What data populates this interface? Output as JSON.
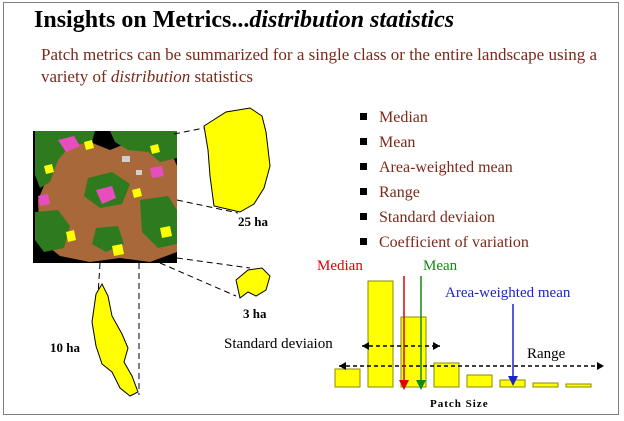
{
  "title": {
    "main": "Insights on Metrics",
    "ellipsis": "...",
    "italic": "distribution statistics"
  },
  "subtitle": {
    "before": "Patch metrics can be summarized for a single class or the entire landscape using a variety of ",
    "em": "distribution",
    "after": " statistics"
  },
  "bullets": [
    "Median",
    "Mean",
    "Area-weighted mean",
    "Range",
    "Standard deviaion",
    "Coefficient of variation"
  ],
  "patches": {
    "large": "25 ha",
    "small": "3 ha",
    "medium": "10 ha"
  },
  "histogram": {
    "median_label": "Median",
    "mean_label": "Mean",
    "awm_label": "Area-weighted mean",
    "sd_label": "Standard deviaion",
    "range_label": "Range",
    "xaxis_label": "Patch Size",
    "values": [
      18,
      106,
      70,
      24,
      12,
      7,
      4,
      3
    ],
    "max_value": 106,
    "colors": {
      "bar_fill": "#ffff00",
      "bar_stroke": "#8a8a00",
      "median": "#e00000",
      "mean": "#128a12",
      "awm": "#1c25c9"
    }
  },
  "colors": {
    "title_text": "#000000",
    "body_text": "#7a2a1a",
    "map_brown": "#a8683a",
    "map_green": "#2d7a1f",
    "map_pink": "#e84dbf",
    "map_yellow": "#ffff00",
    "map_black": "#000000"
  }
}
